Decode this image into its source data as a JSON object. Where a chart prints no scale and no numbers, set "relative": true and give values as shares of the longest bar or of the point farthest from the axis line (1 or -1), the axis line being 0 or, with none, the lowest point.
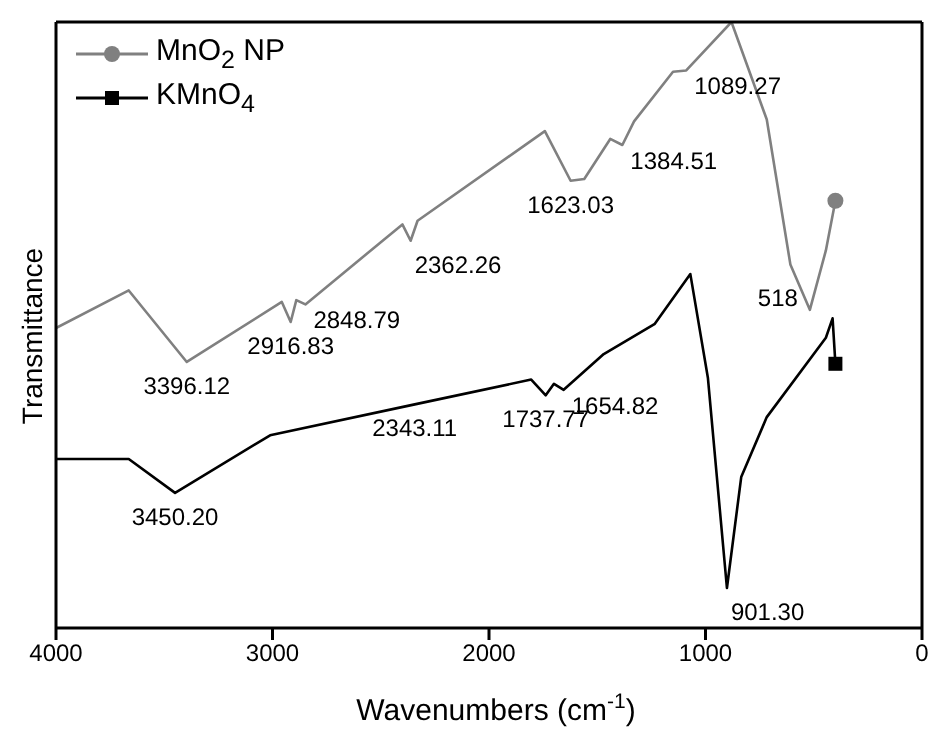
{
  "chart_data": {
    "type": "line",
    "xlabel": "Wavenumbers (cm$^{-1}$)",
    "ylabel": "Transmittance",
    "relative": true,
    "xlim": [
      4000,
      0
    ],
    "xticks": [
      4000,
      3000,
      2000,
      1000,
      0
    ],
    "legend": "top left",
    "grid": false,
    "line_style": "solid",
    "series": [
      {
        "name": "MnO$_{2}$ NP",
        "color": "#808080",
        "x": [
          4000,
          3664,
          3396,
          2957,
          2916,
          2890,
          2848,
          2400,
          2362,
          2330,
          1742,
          1623,
          1560,
          1440,
          1384,
          1330,
          1150,
          1089,
          880,
          717,
          608,
          518,
          444,
          400
        ],
        "values": [
          0.495,
          0.557,
          0.439,
          0.538,
          0.505,
          0.541,
          0.534,
          0.666,
          0.639,
          0.672,
          0.82,
          0.738,
          0.741,
          0.807,
          0.797,
          0.836,
          0.918,
          0.92,
          1,
          0.839,
          0.6,
          0.525,
          0.623,
          0.705
        ]
      },
      {
        "name": "KMnO$_{4}$",
        "color": "#000000",
        "x": [
          4000,
          3664,
          3450,
          3011,
          2343,
          1805,
          1738,
          1700,
          1655,
          1470,
          1234,
          1070,
          989,
          901,
          835,
          717,
          444,
          413,
          400
        ],
        "values": [
          0.279,
          0.279,
          0.223,
          0.318,
          0.369,
          0.41,
          0.384,
          0.403,
          0.393,
          0.452,
          0.502,
          0.584,
          0.413,
          0.066,
          0.249,
          0.348,
          0.479,
          0.511,
          0.436
        ]
      },
      {
        "type": "scatter",
        "color": "#808080",
        "marker": "circle",
        "x": [
          400
        ],
        "values": [
          0.705
        ]
      },
      {
        "type": "scatter",
        "color": "#000000",
        "marker": "square",
        "x": [
          400
        ],
        "values": [
          0.436
        ]
      }
    ],
    "annotations": [
      {
        "text": "3396.12",
        "x": 3396,
        "y": 0.439
      },
      {
        "text": "2916.83",
        "x": 2916,
        "y": 0.505
      },
      {
        "text": "2848.79",
        "x": 2848,
        "y": 0.534
      },
      {
        "text": "2362.26",
        "x": 2362,
        "y": 0.639
      },
      {
        "text": "1623.03",
        "x": 1623,
        "y": 0.738
      },
      {
        "text": "1384.51",
        "x": 1384,
        "y": 0.797
      },
      {
        "text": "1089.27",
        "x": 1089,
        "y": 0.92
      },
      {
        "text": "518",
        "x": 518,
        "y": 0.525
      },
      {
        "text": "3450.20",
        "x": 3450,
        "y": 0.223
      },
      {
        "text": "2343.11",
        "x": 2343,
        "y": 0.369
      },
      {
        "text": "1737.77",
        "x": 1738,
        "y": 0.384
      },
      {
        "text": "1654.82",
        "x": 1655,
        "y": 0.393
      },
      {
        "text": "901.30",
        "x": 901,
        "y": 0.066
      }
    ]
  }
}
